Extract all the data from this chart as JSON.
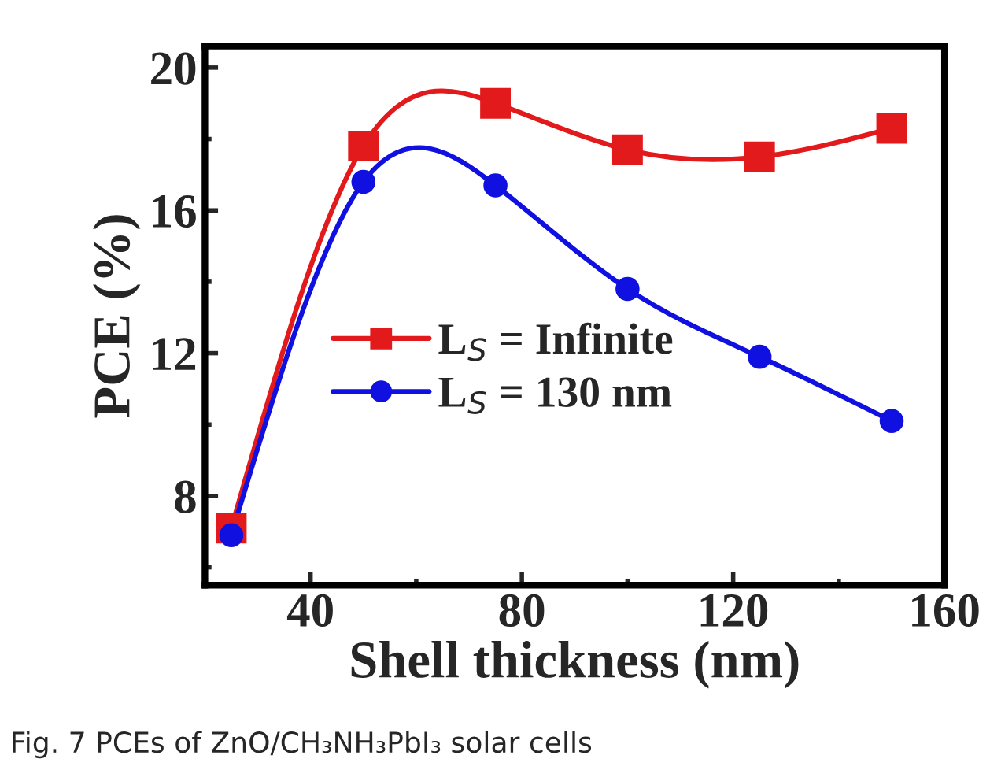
{
  "chart_data": {
    "type": "line",
    "xlabel": "Shell thickness (nm)",
    "ylabel": "PCE (%)",
    "x": [
      25,
      50,
      75,
      100,
      125,
      150
    ],
    "series": [
      {
        "name": "L$_{S}$ = Infinite",
        "color": "#e31a1c",
        "marker": "square",
        "values": [
          7.1,
          17.8,
          19.0,
          17.7,
          17.5,
          18.3
        ]
      },
      {
        "name": "L$_{S}$ = 130 nm",
        "color": "#1010e0",
        "marker": "circle",
        "values": [
          6.9,
          16.8,
          16.7,
          13.8,
          11.9,
          10.1
        ]
      }
    ],
    "xlim": [
      20,
      160
    ],
    "ylim": [
      5.5,
      20.6
    ],
    "xticks": [
      40,
      {
        "value": 60,
        "label": null
      },
      80,
      {
        "value": 100,
        "label": null
      },
      120,
      {
        "value": 140,
        "label": null
      },
      160
    ],
    "yticks": [
      {
        "value": 6,
        "label": null
      },
      8,
      {
        "value": 10,
        "label": null
      },
      12,
      {
        "value": 14,
        "label": null
      },
      16,
      {
        "value": 18,
        "label": null
      },
      20
    ],
    "grid": false,
    "legend": "left",
    "line_style": "solid",
    "annotations": [
      "Fig. 7 PCEs of ZnO/CH₃NH₃PbI₃ solar cells"
    ]
  }
}
